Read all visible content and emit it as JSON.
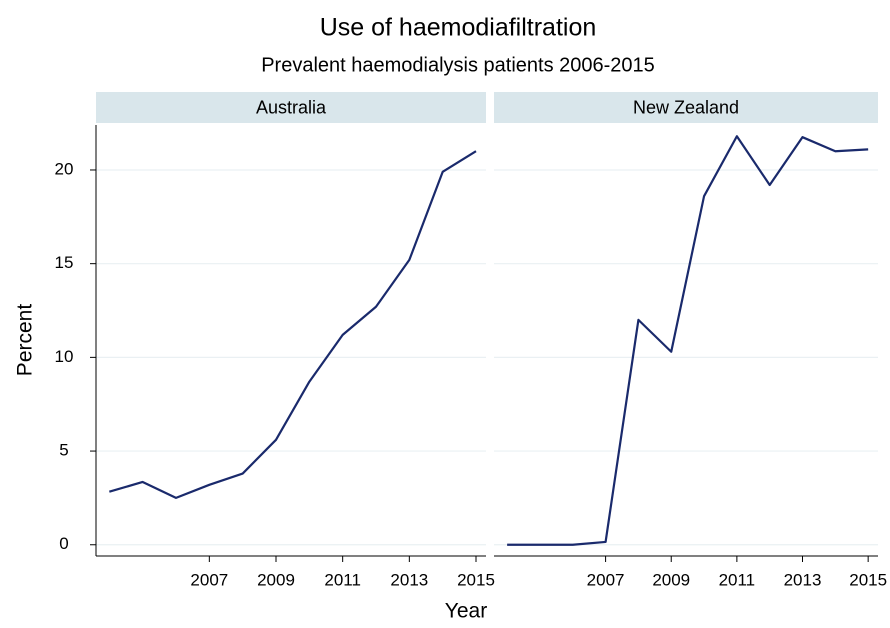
{
  "title": "Use of haemodiafiltration",
  "subtitle": "Prevalent haemodialysis patients 2006-2015",
  "x_label": "Year",
  "y_label": "Percent",
  "chart_data": [
    {
      "type": "line",
      "title": "Australia",
      "x": [
        2004,
        2005,
        2006,
        2007,
        2008,
        2009,
        2010,
        2011,
        2012,
        2013,
        2014,
        2015
      ],
      "series": [
        {
          "color": "#1a2a6c",
          "values": [
            2.83,
            3.35,
            2.5,
            3.2,
            3.8,
            5.6,
            8.7,
            11.2,
            12.7,
            15.2,
            19.9,
            21.0
          ]
        }
      ],
      "xlim": [
        2003.6,
        2015.3
      ],
      "xticks": [
        2007,
        2009,
        2011,
        2013,
        2015
      ],
      "ylim": [
        -0.6,
        22.4
      ],
      "yticks": [
        0,
        5,
        10,
        15,
        20
      ],
      "grid": true
    },
    {
      "type": "line",
      "title": "New Zealand",
      "x": [
        2004,
        2005,
        2006,
        2007,
        2008,
        2009,
        2010,
        2011,
        2012,
        2013,
        2014,
        2015
      ],
      "series": [
        {
          "color": "#1a2a6c",
          "values": [
            0,
            0,
            0,
            0.15,
            12.0,
            10.3,
            18.6,
            21.8,
            19.2,
            21.75,
            21.0,
            21.1
          ]
        }
      ],
      "xlim": [
        2003.6,
        2015.3
      ],
      "xticks": [
        2007,
        2009,
        2011,
        2013,
        2015
      ],
      "ylim": [
        -0.6,
        22.4
      ],
      "yticks": [
        0,
        5,
        10,
        15,
        20
      ],
      "grid": true
    }
  ]
}
